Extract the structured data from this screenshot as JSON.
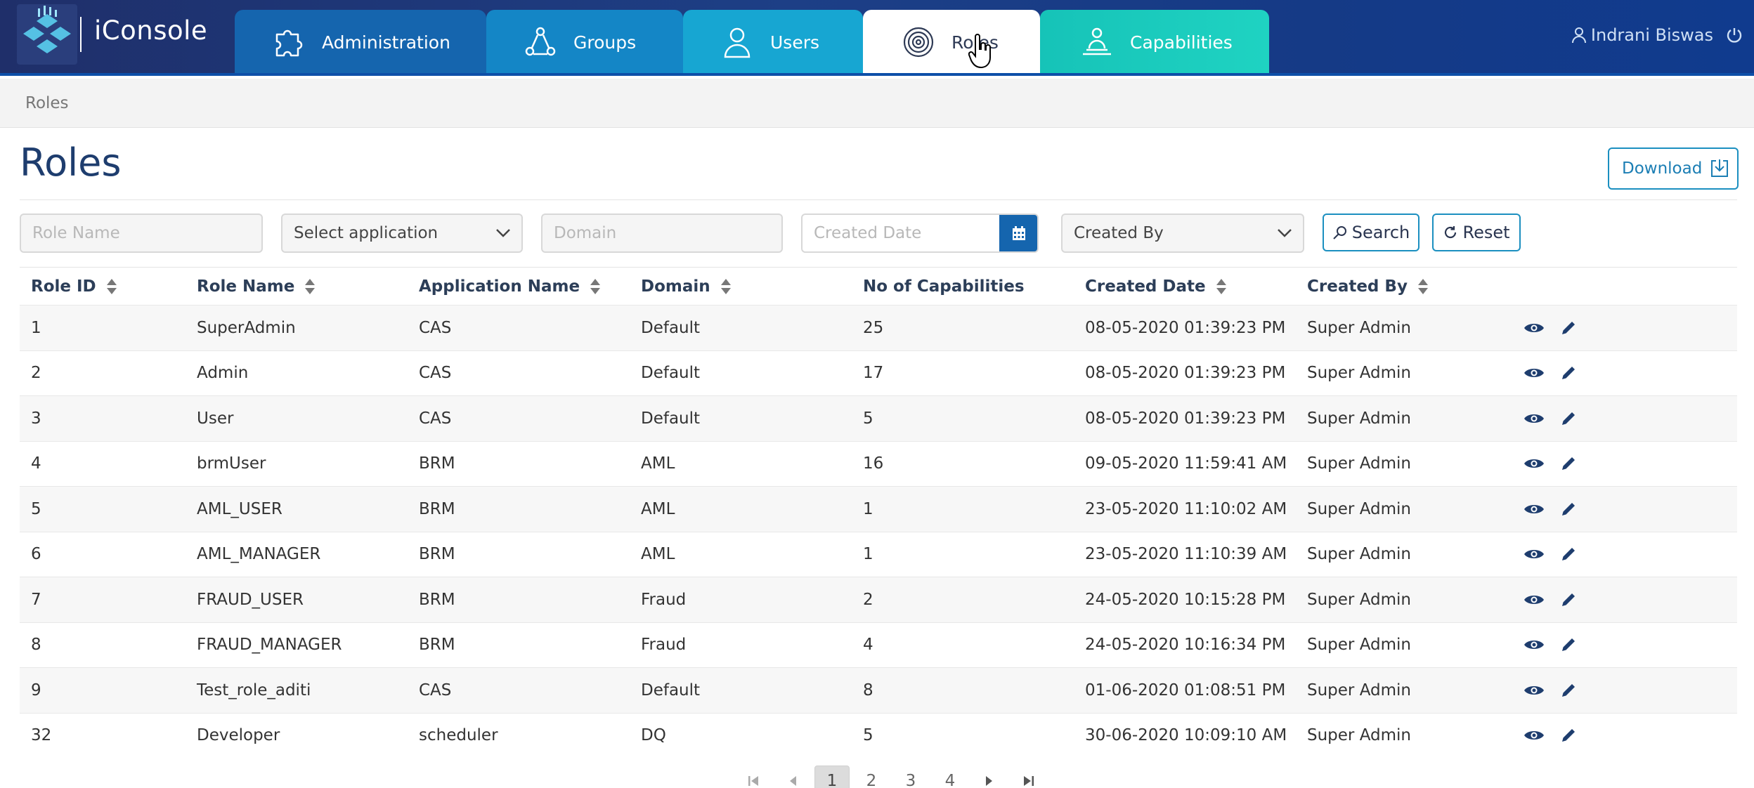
{
  "header": {
    "app_title": "iConsole",
    "user_name": "Indrani Biswas",
    "tabs": [
      {
        "label": "Administration",
        "icon": "puzzle-icon"
      },
      {
        "label": "Groups",
        "icon": "groups-icon"
      },
      {
        "label": "Users",
        "icon": "user-icon"
      },
      {
        "label": "Roles",
        "icon": "fingerprint-icon",
        "active": true
      },
      {
        "label": "Capabilities",
        "icon": "capabilities-icon"
      }
    ]
  },
  "breadcrumb": {
    "current": "Roles"
  },
  "page": {
    "title": "Roles",
    "download_label": "Download"
  },
  "filters": {
    "role_name_placeholder": "Role Name",
    "application_selected": "Select application",
    "domain_placeholder": "Domain",
    "created_date_placeholder": "Created Date",
    "created_by_selected": "Created By",
    "search_label": "Search",
    "reset_label": "Reset"
  },
  "table": {
    "columns": [
      "Role ID",
      "Role Name",
      "Application Name",
      "Domain",
      "No of Capabilities",
      "Created Date",
      "Created By"
    ],
    "rows": [
      {
        "id": "1",
        "name": "SuperAdmin",
        "app": "CAS",
        "domain": "Default",
        "caps": "25",
        "date": "08-05-2020 01:39:23 PM",
        "by": "Super Admin"
      },
      {
        "id": "2",
        "name": "Admin",
        "app": "CAS",
        "domain": "Default",
        "caps": "17",
        "date": "08-05-2020 01:39:23 PM",
        "by": "Super Admin"
      },
      {
        "id": "3",
        "name": "User",
        "app": "CAS",
        "domain": "Default",
        "caps": "5",
        "date": "08-05-2020 01:39:23 PM",
        "by": "Super Admin"
      },
      {
        "id": "4",
        "name": "brmUser",
        "app": "BRM",
        "domain": "AML",
        "caps": "16",
        "date": "09-05-2020 11:59:41 AM",
        "by": "Super Admin"
      },
      {
        "id": "5",
        "name": "AML_USER",
        "app": "BRM",
        "domain": "AML",
        "caps": "1",
        "date": "23-05-2020 11:10:02 AM",
        "by": "Super Admin"
      },
      {
        "id": "6",
        "name": "AML_MANAGER",
        "app": "BRM",
        "domain": "AML",
        "caps": "1",
        "date": "23-05-2020 11:10:39 AM",
        "by": "Super Admin"
      },
      {
        "id": "7",
        "name": "FRAUD_USER",
        "app": "BRM",
        "domain": "Fraud",
        "caps": "2",
        "date": "24-05-2020 10:15:28 PM",
        "by": "Super Admin"
      },
      {
        "id": "8",
        "name": "FRAUD_MANAGER",
        "app": "BRM",
        "domain": "Fraud",
        "caps": "4",
        "date": "24-05-2020 10:16:34 PM",
        "by": "Super Admin"
      },
      {
        "id": "9",
        "name": "Test_role_aditi",
        "app": "CAS",
        "domain": "Default",
        "caps": "8",
        "date": "01-06-2020 01:08:51 PM",
        "by": "Super Admin"
      },
      {
        "id": "32",
        "name": "Developer",
        "app": "scheduler",
        "domain": "DQ",
        "caps": "5",
        "date": "30-06-2020 10:09:10 AM",
        "by": "Super Admin"
      }
    ]
  },
  "pagination": {
    "pages": [
      "1",
      "2",
      "3",
      "4"
    ],
    "current": "1"
  },
  "colors": {
    "header_bg": "#1d3f86",
    "accent": "#1b8fc0",
    "title": "#1e3d6e"
  }
}
